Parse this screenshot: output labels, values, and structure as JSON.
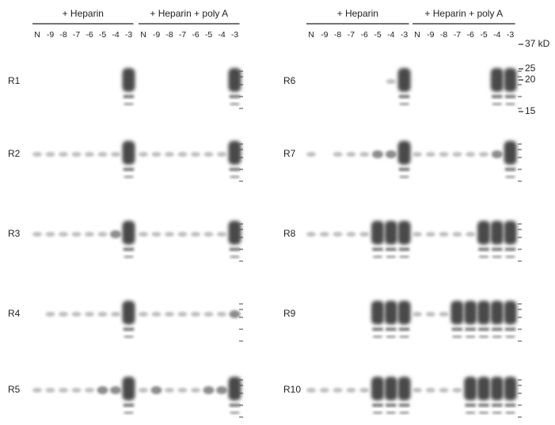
{
  "panels": [
    {
      "groups": [
        {
          "title": "+ Heparin",
          "lanes": [
            "N",
            "-9",
            "-8",
            "-7",
            "-6",
            "-5",
            "-4",
            "-3"
          ]
        },
        {
          "title": "+ Heparin + poly A",
          "lanes": [
            "N",
            "-9",
            "-8",
            "-7",
            "-6",
            "-5",
            "-4",
            "-3"
          ]
        }
      ],
      "rows": [
        "R1",
        "R2",
        "R3",
        "R4",
        "R5"
      ]
    },
    {
      "groups": [
        {
          "title": "+ Heparin",
          "lanes": [
            "N",
            "-9",
            "-8",
            "-7",
            "-6",
            "-5",
            "-4",
            "-3"
          ]
        },
        {
          "title": "+ Heparin + poly A",
          "lanes": [
            "N",
            "-9",
            "-8",
            "-7",
            "-6",
            "-5",
            "-4",
            "-3"
          ]
        }
      ],
      "rows": [
        "R6",
        "R7",
        "R8",
        "R9",
        "R10"
      ]
    }
  ],
  "markers": [
    "37 kD",
    "25",
    "20",
    "15"
  ]
}
